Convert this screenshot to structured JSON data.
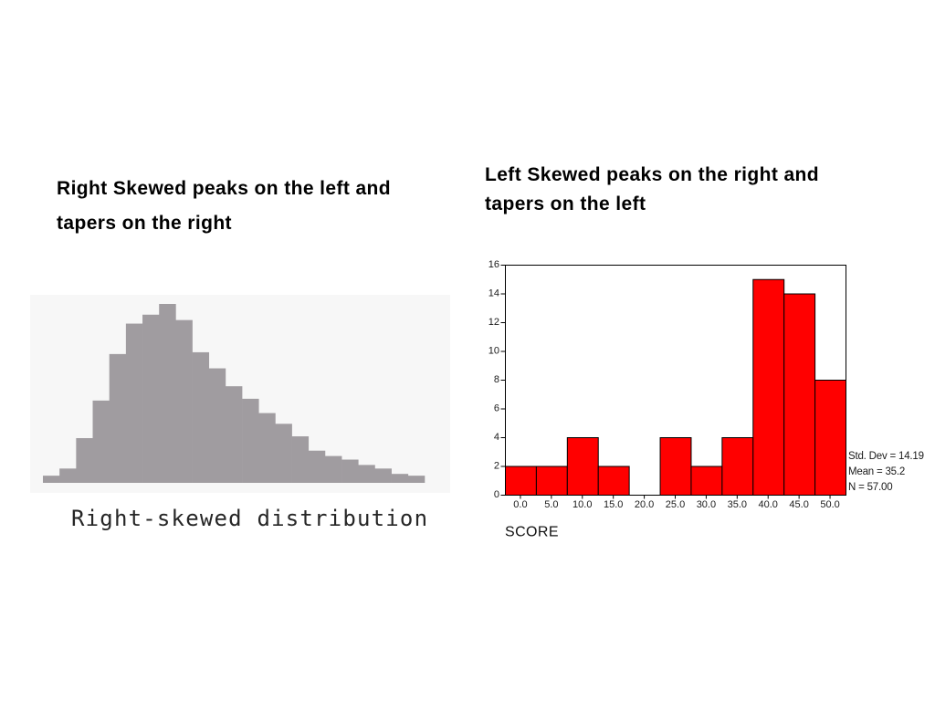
{
  "slide": {
    "left_title": [
      "Right Skewed peaks on the left and",
      "tapers on the right"
    ],
    "right_title": [
      "Left Skewed peaks on the right and",
      "tapers on the left"
    ]
  },
  "colors": {
    "page_background": "#ffffff",
    "left_chart_background": "#f7f7f7",
    "left_bars": "#a09ca0",
    "right_bars": "#ff0000",
    "right_bar_outline": "#000000",
    "text": "#000000"
  },
  "chart_data": [
    {
      "type": "bar",
      "caption": "Right-skewed distribution",
      "values": [
        0.04,
        0.08,
        0.25,
        0.46,
        0.72,
        0.89,
        0.94,
        1.0,
        0.91,
        0.73,
        0.64,
        0.54,
        0.47,
        0.39,
        0.33,
        0.26,
        0.18,
        0.15,
        0.13,
        0.1,
        0.08,
        0.05,
        0.04
      ],
      "grid": false
    },
    {
      "type": "bar",
      "categories": [
        "0.0",
        "5.0",
        "10.0",
        "15.0",
        "20.0",
        "25.0",
        "30.0",
        "35.0",
        "40.0",
        "45.0",
        "50.0"
      ],
      "values": [
        2,
        2,
        4,
        2,
        0,
        4,
        2,
        4,
        15,
        14,
        8
      ],
      "xlabel": "SCORE",
      "ylim": [
        0,
        16
      ],
      "yticks": [
        0,
        2,
        4,
        6,
        8,
        10,
        12,
        14,
        16
      ],
      "grid": false,
      "annotations": [
        "Std. Dev = 14.19",
        "Mean = 35.2",
        "N = 57.00"
      ]
    }
  ]
}
